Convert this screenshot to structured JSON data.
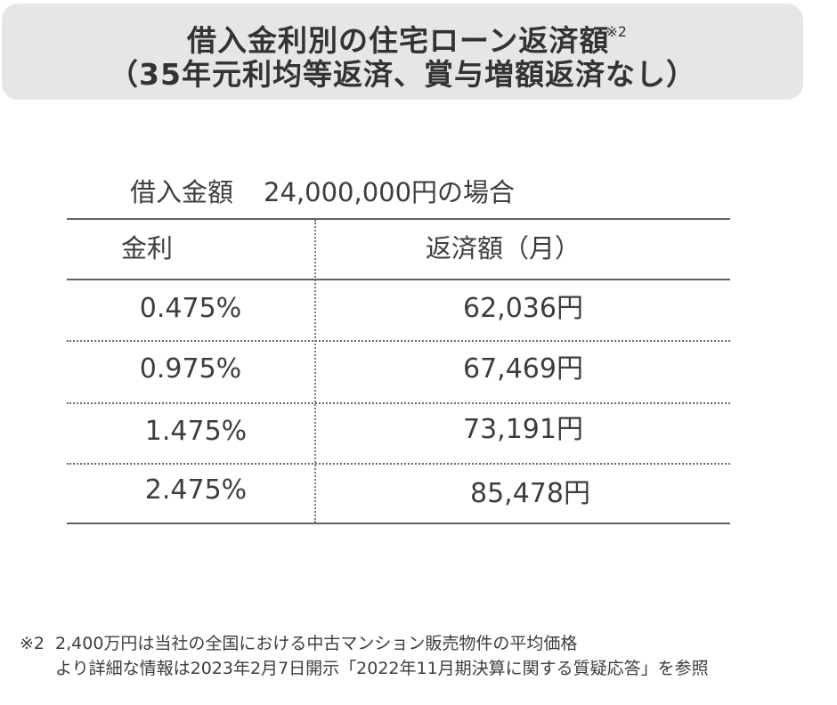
{
  "title": {
    "line1": "借入金利別の住宅ローン返済額",
    "line1_note": "※2",
    "line2": "（35年元利均等返済、賞与増額返済なし）"
  },
  "caption": {
    "label": "借入金額",
    "amount": "24,000,000円の場合"
  },
  "table": {
    "headers": {
      "rate": "金利",
      "payment": "返済額（月）"
    },
    "rows": [
      {
        "rate": "0.475%",
        "payment": "62,036円"
      },
      {
        "rate": "0.975%",
        "payment": "67,469円"
      },
      {
        "rate": "1.475%",
        "payment": "73,191円"
      },
      {
        "rate": "2.475%",
        "payment": "85,478円"
      }
    ]
  },
  "footnotes": {
    "mark": "※2",
    "line1": "2,400万円は当社の全国における中古マンション販売物件の平均価格",
    "line2": "より詳細な情報は2023年2月7日開示「2022年11月期決算に関する質疑応答」を参照"
  }
}
